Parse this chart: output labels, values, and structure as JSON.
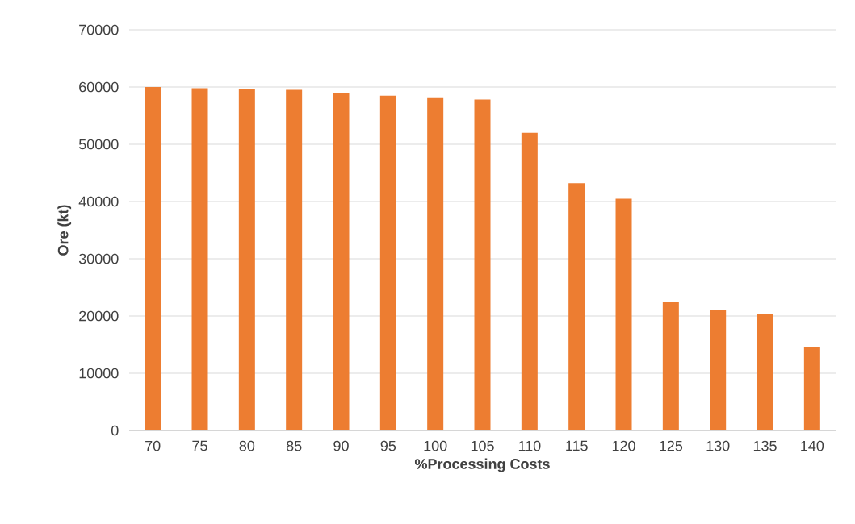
{
  "chart_data": {
    "type": "bar",
    "xlabel": "%Processing Costs",
    "ylabel": "Ore (kt)",
    "categories": [
      "70",
      "75",
      "80",
      "85",
      "90",
      "95",
      "100",
      "105",
      "110",
      "115",
      "120",
      "125",
      "130",
      "135",
      "140"
    ],
    "values": [
      60000,
      59800,
      59700,
      59500,
      59000,
      58500,
      58200,
      57800,
      52000,
      43200,
      40500,
      22500,
      21100,
      20300,
      14500
    ],
    "color": "#ed7d31",
    "ylim": [
      0,
      70000
    ],
    "yticks": [
      0,
      10000,
      20000,
      30000,
      40000,
      50000,
      60000,
      70000
    ],
    "grid": "y"
  }
}
